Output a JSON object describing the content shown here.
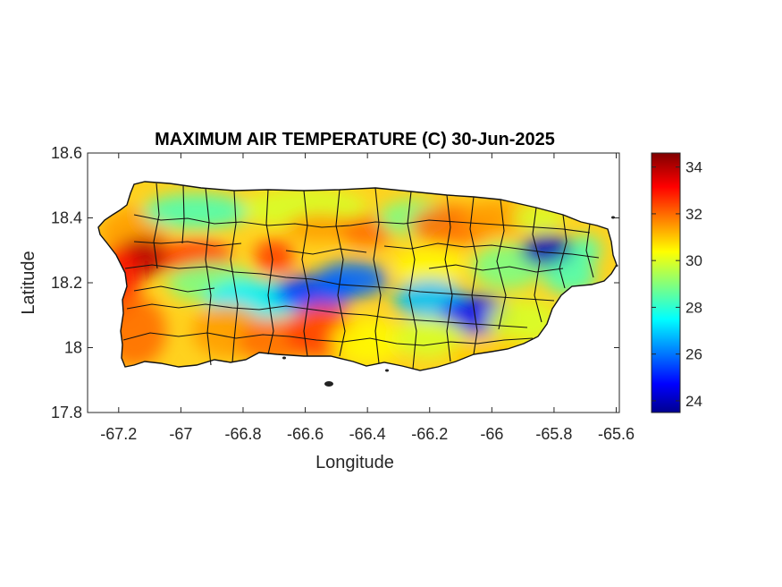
{
  "chart_data": {
    "type": "heatmap",
    "title": "MAXIMUM AIR TEMPERATURE (C) 30-Jun-2025",
    "xlabel": "Longitude",
    "ylabel": "Latitude",
    "xlim": [
      -67.3,
      -65.59
    ],
    "ylim": [
      17.8,
      18.6
    ],
    "xticks": [
      -67.2,
      -67,
      -66.8,
      -66.6,
      -66.4,
      -66.2,
      -66,
      -65.8,
      -65.6
    ],
    "xtick_labels": [
      "-67.2",
      "-67",
      "-66.8",
      "-66.6",
      "-66.4",
      "-66.2",
      "-66",
      "-65.8",
      "-65.6"
    ],
    "yticks": [
      17.8,
      18,
      18.2,
      18.4,
      18.6
    ],
    "ytick_labels": [
      "17.8",
      "18",
      "18.2",
      "18.4",
      "18.6"
    ],
    "colorbar": {
      "label": "",
      "range": [
        23.5,
        34.6
      ],
      "ticks": [
        24,
        26,
        28,
        30,
        32,
        34
      ],
      "tick_labels": [
        "24",
        "26",
        "28",
        "30",
        "32",
        "34"
      ],
      "colormap": "jet"
    },
    "grid": false,
    "hotspots": [
      {
        "lon": -67.13,
        "lat": 18.28,
        "value": 33.5
      },
      {
        "lon": -67.18,
        "lat": 18.1,
        "value": 32.5
      },
      {
        "lon": -66.52,
        "lat": 18.06,
        "value": 32.0
      },
      {
        "lon": -66.12,
        "lat": 18.38,
        "value": 32.0
      },
      {
        "lon": -66.7,
        "lat": 18.28,
        "value": 32.5
      }
    ],
    "coldspots": [
      {
        "lon": -65.8,
        "lat": 18.3,
        "value": 24.5
      },
      {
        "lon": -66.05,
        "lat": 18.1,
        "value": 25.0
      },
      {
        "lon": -66.57,
        "lat": 18.17,
        "value": 25.0
      },
      {
        "lon": -66.45,
        "lat": 18.2,
        "value": 25.5
      }
    ]
  }
}
